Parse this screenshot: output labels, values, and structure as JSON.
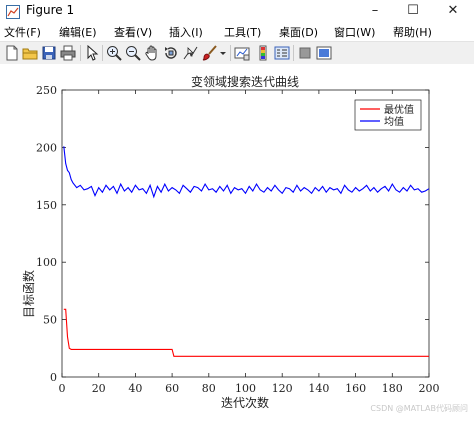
{
  "window": {
    "title": "Figure 1",
    "controls": {
      "minimize": "–",
      "maximize": "☐",
      "close": "✕"
    }
  },
  "menu": [
    "文件(F)",
    "编辑(E)",
    "查看(V)",
    "插入(I)",
    "工具(T)",
    "桌面(D)",
    "窗口(W)",
    "帮助(H)"
  ],
  "toolbar": {
    "icons": [
      "new-figure-icon",
      "open-file-icon",
      "save-icon",
      "print-icon",
      "select-arrow-icon",
      "zoom-in-icon",
      "zoom-out-icon",
      "pan-hand-icon",
      "rotate-3d-icon",
      "data-cursor-icon",
      "brush-icon",
      "brush-dropdown-icon",
      "link-plot-icon",
      "insert-colorbar-icon",
      "insert-legend-icon",
      "hide-plot-tools-icon",
      "show-plot-tools-icon"
    ]
  },
  "chart_data": {
    "type": "line",
    "title": "变领域搜索迭代曲线",
    "xlabel": "迭代次数",
    "ylabel": "目标函数",
    "xlim": [
      0,
      200
    ],
    "ylim": [
      0,
      250
    ],
    "xticks": [
      "0",
      "20",
      "40",
      "60",
      "80",
      "100",
      "120",
      "140",
      "160",
      "180",
      "200"
    ],
    "yticks": [
      "0",
      "50",
      "100",
      "150",
      "200",
      "250"
    ],
    "grid": false,
    "legend_position": "top-right",
    "series": [
      {
        "name": "最优值",
        "color": "#ff0000",
        "x": [
          1,
          2,
          3,
          4,
          5,
          60,
          61,
          200
        ],
        "y": [
          59,
          59,
          35,
          25,
          24,
          24,
          18,
          18
        ]
      },
      {
        "name": "均值",
        "color": "#0000ff",
        "x": [
          1,
          2,
          3,
          4,
          5,
          6,
          8,
          10,
          12,
          14,
          16,
          18,
          20,
          22,
          24,
          26,
          28,
          30,
          32,
          34,
          36,
          38,
          40,
          42,
          44,
          46,
          48,
          50,
          52,
          54,
          56,
          58,
          60,
          62,
          64,
          66,
          68,
          70,
          72,
          74,
          76,
          78,
          80,
          82,
          84,
          86,
          88,
          90,
          92,
          94,
          96,
          98,
          100,
          102,
          104,
          106,
          108,
          110,
          112,
          114,
          116,
          118,
          120,
          122,
          124,
          126,
          128,
          130,
          132,
          134,
          136,
          138,
          140,
          142,
          144,
          146,
          148,
          150,
          152,
          154,
          156,
          158,
          160,
          162,
          164,
          166,
          168,
          170,
          172,
          174,
          176,
          178,
          180,
          182,
          184,
          186,
          188,
          190,
          192,
          194,
          196,
          198,
          200
        ],
        "y": [
          201,
          186,
          180,
          178,
          172,
          169,
          165,
          167,
          163,
          164,
          166,
          158,
          165,
          161,
          167,
          163,
          166,
          160,
          168,
          162,
          165,
          161,
          167,
          163,
          164,
          160,
          167,
          157,
          166,
          161,
          168,
          162,
          165,
          163,
          160,
          167,
          164,
          161,
          166,
          165,
          162,
          168,
          163,
          164,
          161,
          166,
          162,
          167,
          160,
          165,
          163,
          164,
          160,
          166,
          162,
          168,
          163,
          161,
          165,
          162,
          167,
          163,
          160,
          165,
          164,
          161,
          167,
          162,
          165,
          163,
          160,
          165,
          162,
          166,
          161,
          165,
          163,
          164,
          160,
          167,
          163,
          161,
          165,
          162,
          164,
          167,
          162,
          165,
          161,
          164,
          166,
          162,
          168,
          163,
          161,
          165,
          162,
          167,
          163,
          164,
          161,
          162,
          164
        ]
      }
    ]
  },
  "watermark": "CSDN @MATLAB代码顾问"
}
